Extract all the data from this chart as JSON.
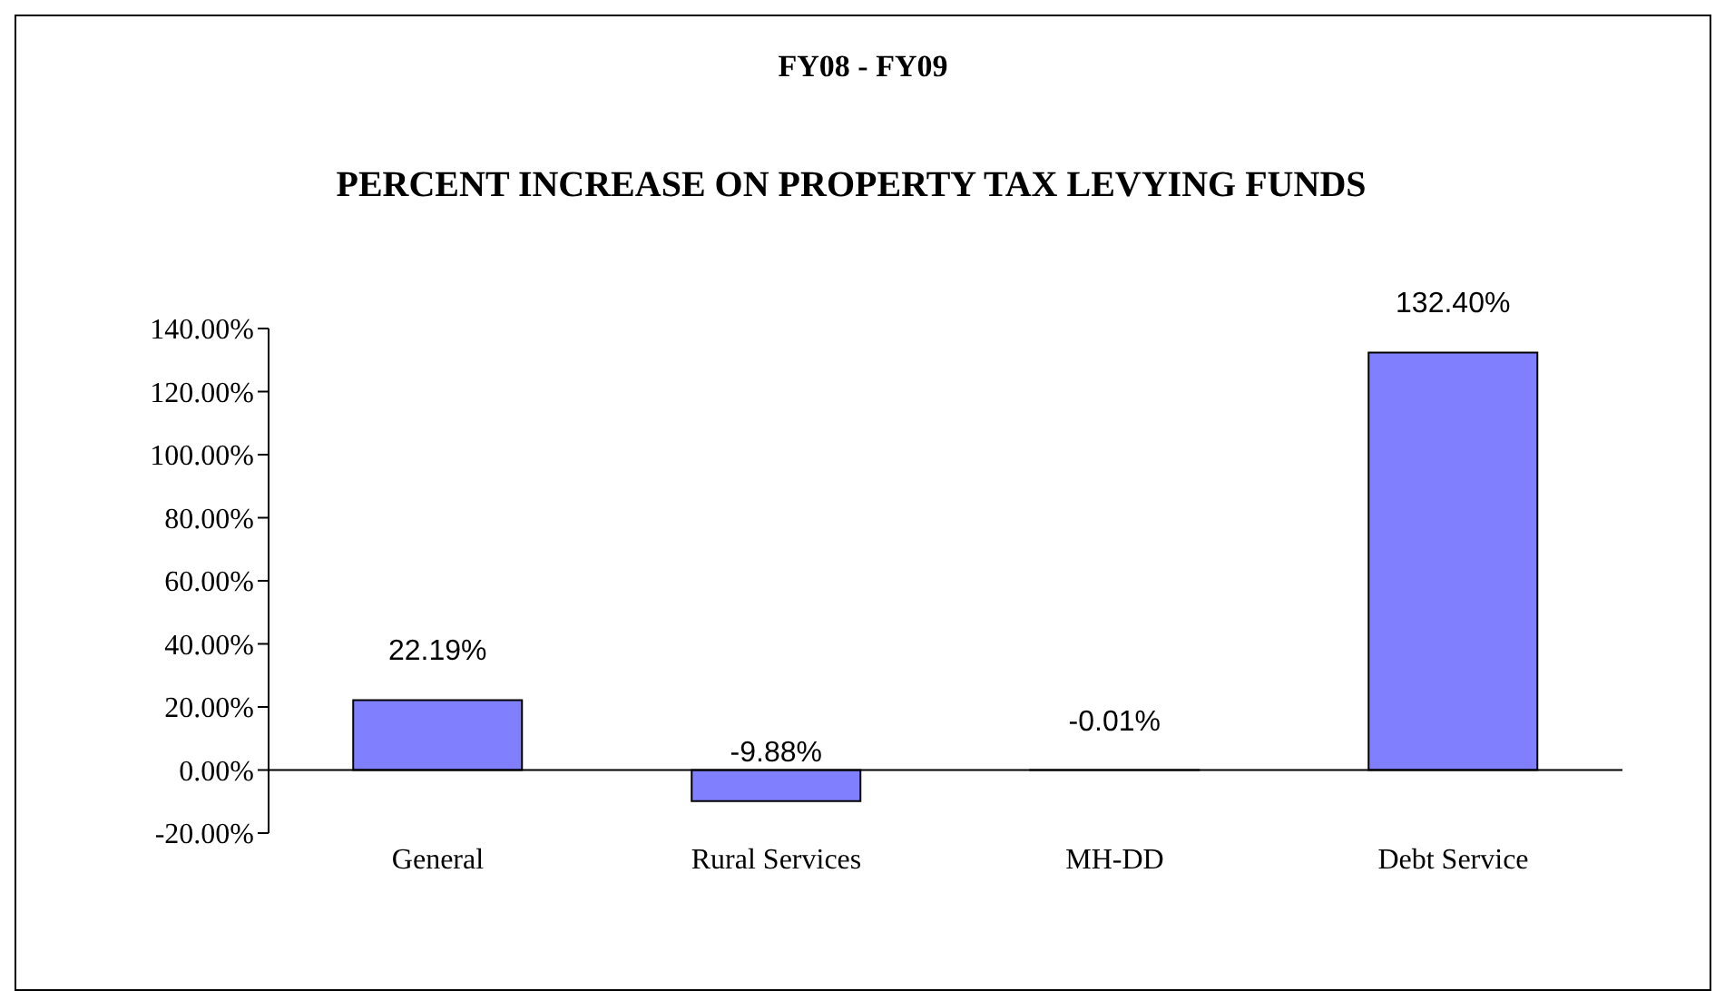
{
  "chart_data": {
    "type": "bar",
    "title": "FY08 - FY09",
    "subtitle": "PERCENT INCREASE ON PROPERTY TAX LEVYING FUNDS",
    "categories": [
      "General",
      "Rural Services",
      "MH-DD",
      "Debt Service"
    ],
    "values": [
      22.19,
      -9.88,
      -0.01,
      132.4
    ],
    "value_labels": [
      "22.19%",
      "-9.88%",
      "-0.01%",
      "132.40%"
    ],
    "color": "#8080ff",
    "ylim": [
      -20,
      140
    ],
    "yticks": [
      {
        "value": -20,
        "label": "-20.00%"
      },
      {
        "value": 0,
        "label": "0.00%"
      },
      {
        "value": 20,
        "label": "20.00%"
      },
      {
        "value": 40,
        "label": "40.00%"
      },
      {
        "value": 60,
        "label": "60.00%"
      },
      {
        "value": 80,
        "label": "80.00%"
      },
      {
        "value": 100,
        "label": "100.00%"
      },
      {
        "value": 120,
        "label": "120.00%"
      },
      {
        "value": 140,
        "label": "140.00%"
      }
    ],
    "grid": false,
    "legend": false
  }
}
